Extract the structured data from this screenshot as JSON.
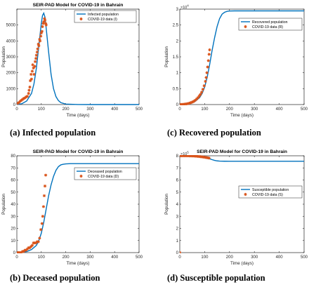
{
  "colors": {
    "model": "#0072BD",
    "data": "#D95319",
    "axis": "#262626",
    "background": "#ffffff"
  },
  "captions": [
    "(a)  Infected population",
    "(c)  Recovered population",
    "(b)  Deceased population",
    "(d)  Susceptible population"
  ],
  "chart_data": [
    {
      "type": "line",
      "title": "SEIR-PAD Model for COVID-19 in Bahrain",
      "xlabel": "Time (days)",
      "ylabel": "Population",
      "xlim": [
        0,
        500
      ],
      "ylim": [
        0,
        6000
      ],
      "xticks": [
        0,
        100,
        200,
        300,
        400,
        500
      ],
      "yticks": [
        0,
        1000,
        2000,
        3000,
        4000,
        5000,
        6000
      ],
      "ytick_labels": [
        "0",
        "1000",
        "2000",
        "3000",
        "4000",
        "5000",
        ""
      ],
      "exponent_label": "",
      "legend_position": "top-right",
      "grid": false,
      "series": [
        {
          "name": "Infected population",
          "style": "line",
          "x": [
            0,
            20,
            40,
            60,
            70,
            80,
            90,
            100,
            105,
            110,
            115,
            120,
            130,
            140,
            150,
            160,
            170,
            180,
            200,
            250,
            300,
            400,
            500
          ],
          "y": [
            10,
            50,
            220,
            700,
            1300,
            2300,
            3700,
            5100,
            5600,
            5750,
            5500,
            4800,
            3300,
            1900,
            1000,
            500,
            250,
            120,
            30,
            2,
            0,
            0,
            0
          ]
        },
        {
          "name": "COVID-19 data (I)",
          "style": "markers",
          "x": [
            3,
            8,
            13,
            18,
            23,
            28,
            33,
            38,
            43,
            48,
            50,
            53,
            55,
            58,
            60,
            63,
            65,
            68,
            70,
            73,
            75,
            78,
            80,
            83,
            85,
            88,
            90,
            93,
            95,
            98,
            100,
            103,
            105,
            108,
            110,
            113,
            115,
            118,
            120
          ],
          "y": [
            80,
            120,
            200,
            260,
            320,
            380,
            420,
            480,
            520,
            700,
            900,
            1100,
            1500,
            1900,
            1600,
            2100,
            2500,
            2300,
            1900,
            2400,
            2700,
            2900,
            3100,
            3300,
            3500,
            3800,
            3700,
            4100,
            4000,
            4300,
            4500,
            4600,
            4900,
            5100,
            5200,
            5400,
            5300,
            5100,
            5000
          ]
        }
      ]
    },
    {
      "type": "line",
      "title": "",
      "xlabel": "Time (days)",
      "ylabel": "Population",
      "xlim": [
        0,
        500
      ],
      "ylim": [
        0,
        30000
      ],
      "xticks": [
        0,
        100,
        200,
        300,
        400,
        500
      ],
      "yticks": [
        0,
        5000,
        10000,
        15000,
        20000,
        25000,
        30000
      ],
      "ytick_labels": [
        "0",
        "0.5",
        "1",
        "1.5",
        "2",
        "2.5",
        "3"
      ],
      "exponent_label": "10",
      "exponent_power": "4",
      "legend_position": "top-right",
      "grid": false,
      "series": [
        {
          "name": "Recovered population",
          "style": "line",
          "x": [
            0,
            40,
            60,
            80,
            90,
            100,
            110,
            120,
            130,
            140,
            150,
            160,
            170,
            180,
            190,
            200,
            220,
            250,
            300,
            400,
            500
          ],
          "y": [
            0,
            300,
            900,
            2200,
            3500,
            5500,
            8500,
            12500,
            17000,
            21000,
            24500,
            27000,
            28400,
            29000,
            29300,
            29400,
            29450,
            29450,
            29450,
            29450,
            29450
          ]
        },
        {
          "name": "COVID-19 data (R)",
          "style": "markers",
          "x": [
            3,
            8,
            13,
            18,
            23,
            28,
            33,
            38,
            43,
            48,
            53,
            58,
            63,
            68,
            73,
            78,
            83,
            88,
            93,
            98,
            103,
            106,
            109,
            112,
            115,
            118,
            120
          ],
          "y": [
            20,
            40,
            70,
            110,
            160,
            230,
            320,
            420,
            550,
            700,
            880,
            1100,
            1400,
            1750,
            2150,
            2650,
            3200,
            3900,
            4800,
            5900,
            7300,
            8500,
            10000,
            11800,
            13800,
            15800,
            17200
          ]
        }
      ]
    },
    {
      "type": "line",
      "title": "SEIR-PAD Model for COVID-19 in Bahrain",
      "xlabel": "Time (days)",
      "ylabel": "Population",
      "xlim": [
        0,
        500
      ],
      "ylim": [
        0,
        80
      ],
      "xticks": [
        0,
        100,
        200,
        300,
        400,
        500
      ],
      "yticks": [
        0,
        10,
        20,
        30,
        40,
        50,
        60,
        70,
        80
      ],
      "ytick_labels": [
        "0",
        "10",
        "20",
        "30",
        "40",
        "50",
        "60",
        "70",
        "80"
      ],
      "exponent_label": "",
      "legend_position": "top-right",
      "grid": false,
      "series": [
        {
          "name": "Deceased population",
          "style": "line",
          "x": [
            0,
            40,
            60,
            80,
            90,
            100,
            110,
            120,
            130,
            140,
            150,
            160,
            170,
            180,
            190,
            200,
            220,
            250,
            300,
            400,
            500
          ],
          "y": [
            0,
            0.8,
            2.5,
            6,
            10,
            16,
            25,
            36,
            47,
            56,
            63,
            68,
            71,
            72.5,
            73,
            73.3,
            73.5,
            73.5,
            73.5,
            73.5,
            73.5
          ]
        },
        {
          "name": "COVID-19 data (D)",
          "style": "markers",
          "x": [
            3,
            8,
            13,
            18,
            23,
            28,
            33,
            38,
            43,
            48,
            53,
            58,
            63,
            68,
            73,
            78,
            83,
            88,
            93,
            98,
            103,
            106,
            109,
            112,
            115,
            118
          ],
          "y": [
            0,
            0,
            0,
            0,
            1,
            1,
            2,
            2,
            3,
            4,
            4,
            5,
            6,
            8,
            8,
            8,
            9,
            9,
            12,
            19,
            24,
            30,
            38,
            47,
            55,
            64
          ]
        }
      ]
    },
    {
      "type": "line",
      "title": "SEIR-PAD Model for COVID-19 in Bahrain",
      "xlabel": "Time (days)",
      "ylabel": "Population",
      "xlim": [
        0,
        500
      ],
      "ylim": [
        0,
        800000
      ],
      "xticks": [
        0,
        100,
        200,
        300,
        400,
        500
      ],
      "yticks": [
        0,
        100000,
        200000,
        300000,
        400000,
        500000,
        600000,
        700000,
        800000
      ],
      "ytick_labels": [
        "0",
        "1",
        "2",
        "3",
        "4",
        "5",
        "6",
        "7",
        "8"
      ],
      "exponent_label": "10",
      "exponent_power": "5",
      "legend_position": "right",
      "grid": false,
      "series": [
        {
          "name": "Susceptible population",
          "style": "line",
          "x": [
            0,
            40,
            60,
            80,
            100,
            110,
            120,
            130,
            140,
            150,
            160,
            180,
            200,
            300,
            400,
            500
          ],
          "y": [
            800000,
            799000,
            797000,
            793000,
            786000,
            781000,
            775000,
            768000,
            762000,
            758000,
            756000,
            755000,
            754500,
            754500,
            754500,
            754500
          ]
        },
        {
          "name": "COVID-19 data (S)",
          "style": "markers",
          "x": [
            0,
            3,
            8,
            13,
            18,
            23,
            28,
            33,
            38,
            43,
            48,
            53,
            58,
            63,
            68,
            73,
            78,
            83,
            88,
            93,
            98,
            103,
            108,
            113,
            118
          ],
          "y": [
            0,
            800000,
            800000,
            800000,
            799900,
            799800,
            799700,
            799500,
            799300,
            799000,
            798600,
            798100,
            797500,
            796800,
            796000,
            795100,
            794000,
            792800,
            791500,
            790000,
            788400,
            786700,
            784900,
            783000,
            781000
          ]
        }
      ]
    }
  ]
}
